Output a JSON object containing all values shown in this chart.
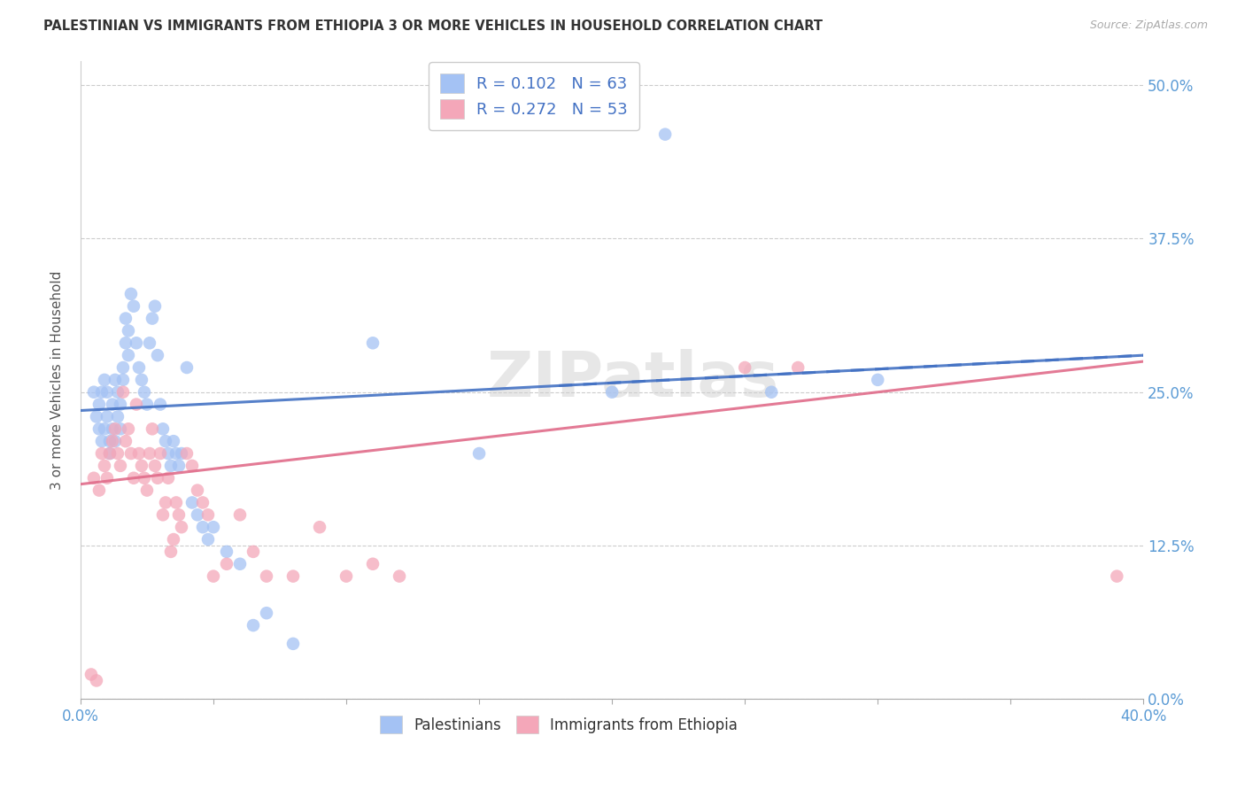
{
  "title": "PALESTINIAN VS IMMIGRANTS FROM ETHIOPIA 3 OR MORE VEHICLES IN HOUSEHOLD CORRELATION CHART",
  "source": "Source: ZipAtlas.com",
  "xlabel_ticks_ends": [
    "0.0%",
    "40.0%"
  ],
  "xlabel_tick_vals": [
    0.0,
    0.05,
    0.1,
    0.15,
    0.2,
    0.25,
    0.3,
    0.35,
    0.4
  ],
  "ylabel_ticks": [
    "0.0%",
    "12.5%",
    "25.0%",
    "37.5%",
    "50.0%"
  ],
  "ylabel_tick_vals": [
    0.0,
    0.125,
    0.25,
    0.375,
    0.5
  ],
  "ylabel": "3 or more Vehicles in Household",
  "legend_label1": "Palestinians",
  "legend_label2": "Immigrants from Ethiopia",
  "r1": 0.102,
  "n1": 63,
  "r2": 0.272,
  "n2": 53,
  "color1": "#a4c2f4",
  "color2": "#f4a7b9",
  "line1_color": "#4472c4",
  "line2_color": "#e06c8a",
  "watermark": "ZIPatlas",
  "blue_x": [
    0.005,
    0.006,
    0.007,
    0.007,
    0.008,
    0.008,
    0.009,
    0.009,
    0.01,
    0.01,
    0.011,
    0.011,
    0.012,
    0.012,
    0.013,
    0.013,
    0.014,
    0.014,
    0.015,
    0.015,
    0.016,
    0.016,
    0.017,
    0.017,
    0.018,
    0.018,
    0.019,
    0.02,
    0.021,
    0.022,
    0.023,
    0.024,
    0.025,
    0.026,
    0.027,
    0.028,
    0.029,
    0.03,
    0.031,
    0.032,
    0.033,
    0.034,
    0.035,
    0.036,
    0.037,
    0.038,
    0.04,
    0.042,
    0.044,
    0.046,
    0.048,
    0.05,
    0.055,
    0.06,
    0.065,
    0.07,
    0.08,
    0.11,
    0.15,
    0.2,
    0.22,
    0.26,
    0.3
  ],
  "blue_y": [
    0.25,
    0.23,
    0.24,
    0.22,
    0.21,
    0.25,
    0.26,
    0.22,
    0.23,
    0.25,
    0.21,
    0.2,
    0.24,
    0.22,
    0.26,
    0.21,
    0.25,
    0.23,
    0.22,
    0.24,
    0.26,
    0.27,
    0.29,
    0.31,
    0.28,
    0.3,
    0.33,
    0.32,
    0.29,
    0.27,
    0.26,
    0.25,
    0.24,
    0.29,
    0.31,
    0.32,
    0.28,
    0.24,
    0.22,
    0.21,
    0.2,
    0.19,
    0.21,
    0.2,
    0.19,
    0.2,
    0.27,
    0.16,
    0.15,
    0.14,
    0.13,
    0.14,
    0.12,
    0.11,
    0.06,
    0.07,
    0.045,
    0.29,
    0.2,
    0.25,
    0.46,
    0.25,
    0.26
  ],
  "pink_x": [
    0.004,
    0.005,
    0.006,
    0.007,
    0.008,
    0.009,
    0.01,
    0.011,
    0.012,
    0.013,
    0.014,
    0.015,
    0.016,
    0.017,
    0.018,
    0.019,
    0.02,
    0.021,
    0.022,
    0.023,
    0.024,
    0.025,
    0.026,
    0.027,
    0.028,
    0.029,
    0.03,
    0.031,
    0.032,
    0.033,
    0.034,
    0.035,
    0.036,
    0.037,
    0.038,
    0.04,
    0.042,
    0.044,
    0.046,
    0.048,
    0.05,
    0.055,
    0.06,
    0.065,
    0.07,
    0.08,
    0.09,
    0.1,
    0.11,
    0.12,
    0.25,
    0.27,
    0.39
  ],
  "pink_y": [
    0.02,
    0.18,
    0.015,
    0.17,
    0.2,
    0.19,
    0.18,
    0.2,
    0.21,
    0.22,
    0.2,
    0.19,
    0.25,
    0.21,
    0.22,
    0.2,
    0.18,
    0.24,
    0.2,
    0.19,
    0.18,
    0.17,
    0.2,
    0.22,
    0.19,
    0.18,
    0.2,
    0.15,
    0.16,
    0.18,
    0.12,
    0.13,
    0.16,
    0.15,
    0.14,
    0.2,
    0.19,
    0.17,
    0.16,
    0.15,
    0.1,
    0.11,
    0.15,
    0.12,
    0.1,
    0.1,
    0.14,
    0.1,
    0.11,
    0.1,
    0.27,
    0.27,
    0.1
  ]
}
